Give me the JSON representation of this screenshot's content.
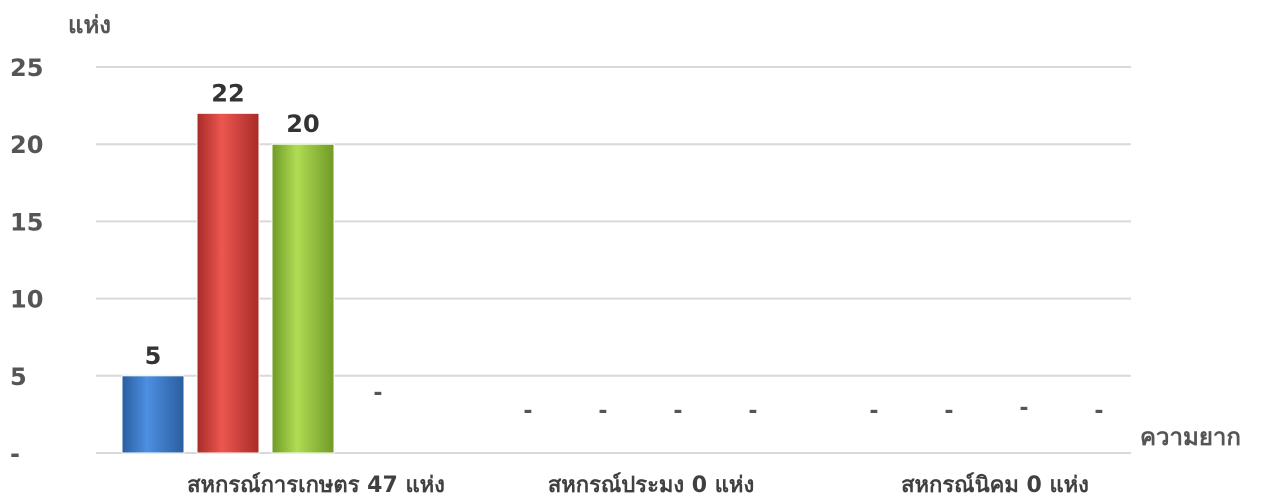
{
  "chart_data": {
    "type": "bar",
    "ylabel": "แห่ง",
    "xlabel": "ความยาก",
    "ylim": [
      0,
      25
    ],
    "y_ticks": [
      "-",
      "5",
      "10",
      "15",
      "20",
      "25"
    ],
    "grid": true,
    "legend": "none",
    "categories": [
      "สหกรณ์การเกษตร 47 แห่ง",
      "สหกรณ์ประมง 0 แห่ง",
      "สหกรณ์นิคม 0 แห่ง"
    ],
    "series_colors": [
      "#3a78c9",
      "#d9413c",
      "#95c43a",
      "#f0a030"
    ],
    "values": [
      [
        5,
        22,
        20,
        0
      ],
      [
        0,
        0,
        0,
        0
      ],
      [
        0,
        0,
        0,
        0
      ]
    ],
    "data_labels": [
      [
        "5",
        "22",
        "20",
        "-"
      ],
      [
        "-",
        "-",
        "-",
        "-"
      ],
      [
        "-",
        "-",
        "-",
        "-"
      ]
    ]
  }
}
